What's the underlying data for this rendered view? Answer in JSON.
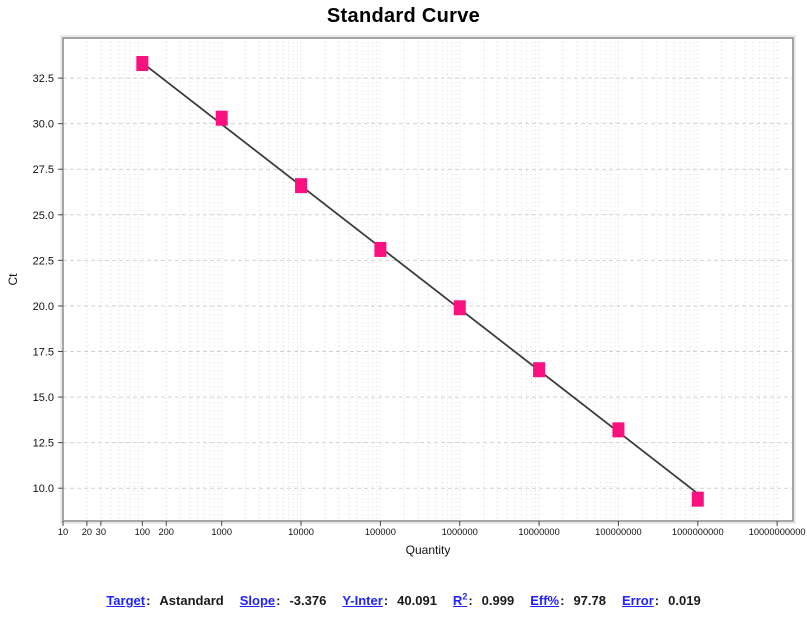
{
  "window": {
    "background": "#ffffff"
  },
  "chart_data": {
    "type": "scatter",
    "title": "Standard Curve",
    "xlabel": "Quantity",
    "ylabel": "Ct",
    "x_scale": "log",
    "xlim_log": [
      1.0,
      10.2
    ],
    "ylim": [
      8.2,
      34.7
    ],
    "grid": {
      "vertical": "dotted at log minor and decade ticks",
      "horizontal": "dashed at major Ct ticks"
    },
    "x_tick_values": [
      10,
      20,
      30,
      100,
      200,
      1000,
      10000,
      100000,
      1000000,
      10000000,
      100000000,
      1000000000,
      10000000000
    ],
    "x_tick_labels": [
      "10",
      "20",
      "30",
      "100",
      "200",
      "1000",
      "10000",
      "100000",
      "1000000",
      "10000000",
      "100000000",
      "1000000000",
      "10000000000"
    ],
    "y_tick_values": [
      32.5,
      30.0,
      27.5,
      25.0,
      22.5,
      20.0,
      17.5,
      15.0,
      12.5,
      10.0
    ],
    "y_tick_labels": [
      "32.5",
      "30.0",
      "27.5",
      "25.0",
      "22.5",
      "20.0",
      "17.5",
      "15.0",
      "12.5",
      "10.0"
    ],
    "series": [
      {
        "name": "Astandard",
        "marker": "square",
        "marker_color": "#FA107F",
        "quantities": [
          100,
          1000,
          10000,
          100000,
          1000000,
          10000000,
          100000000,
          1000000000
        ],
        "ct_values": [
          33.3,
          30.3,
          26.6,
          23.1,
          19.9,
          16.5,
          13.2,
          9.4
        ]
      }
    ],
    "fit_line": {
      "slope": -3.376,
      "y_intercept": 40.091,
      "color": "#3C3C3C"
    },
    "colors": {
      "plot_border": "#8F8F8F",
      "plot_border_outer": "#DCDCDC",
      "grid_vertical": "#D8D8D8",
      "grid_horizontal": "#D2D2D2",
      "tick": "#4A4A4A"
    }
  },
  "stats": {
    "items": [
      {
        "label": "Target",
        "value": "Astandard"
      },
      {
        "label": "Slope",
        "value": "-3.376"
      },
      {
        "label": "Y-Inter",
        "value": "40.091"
      },
      {
        "label": "R",
        "superscript": "2",
        "value": "0.999"
      },
      {
        "label": "Eff%",
        "value": "97.78"
      },
      {
        "label": "Error",
        "value": "0.019"
      }
    ],
    "label_color": "#2222FF",
    "value_color": "#1A1A1A"
  }
}
